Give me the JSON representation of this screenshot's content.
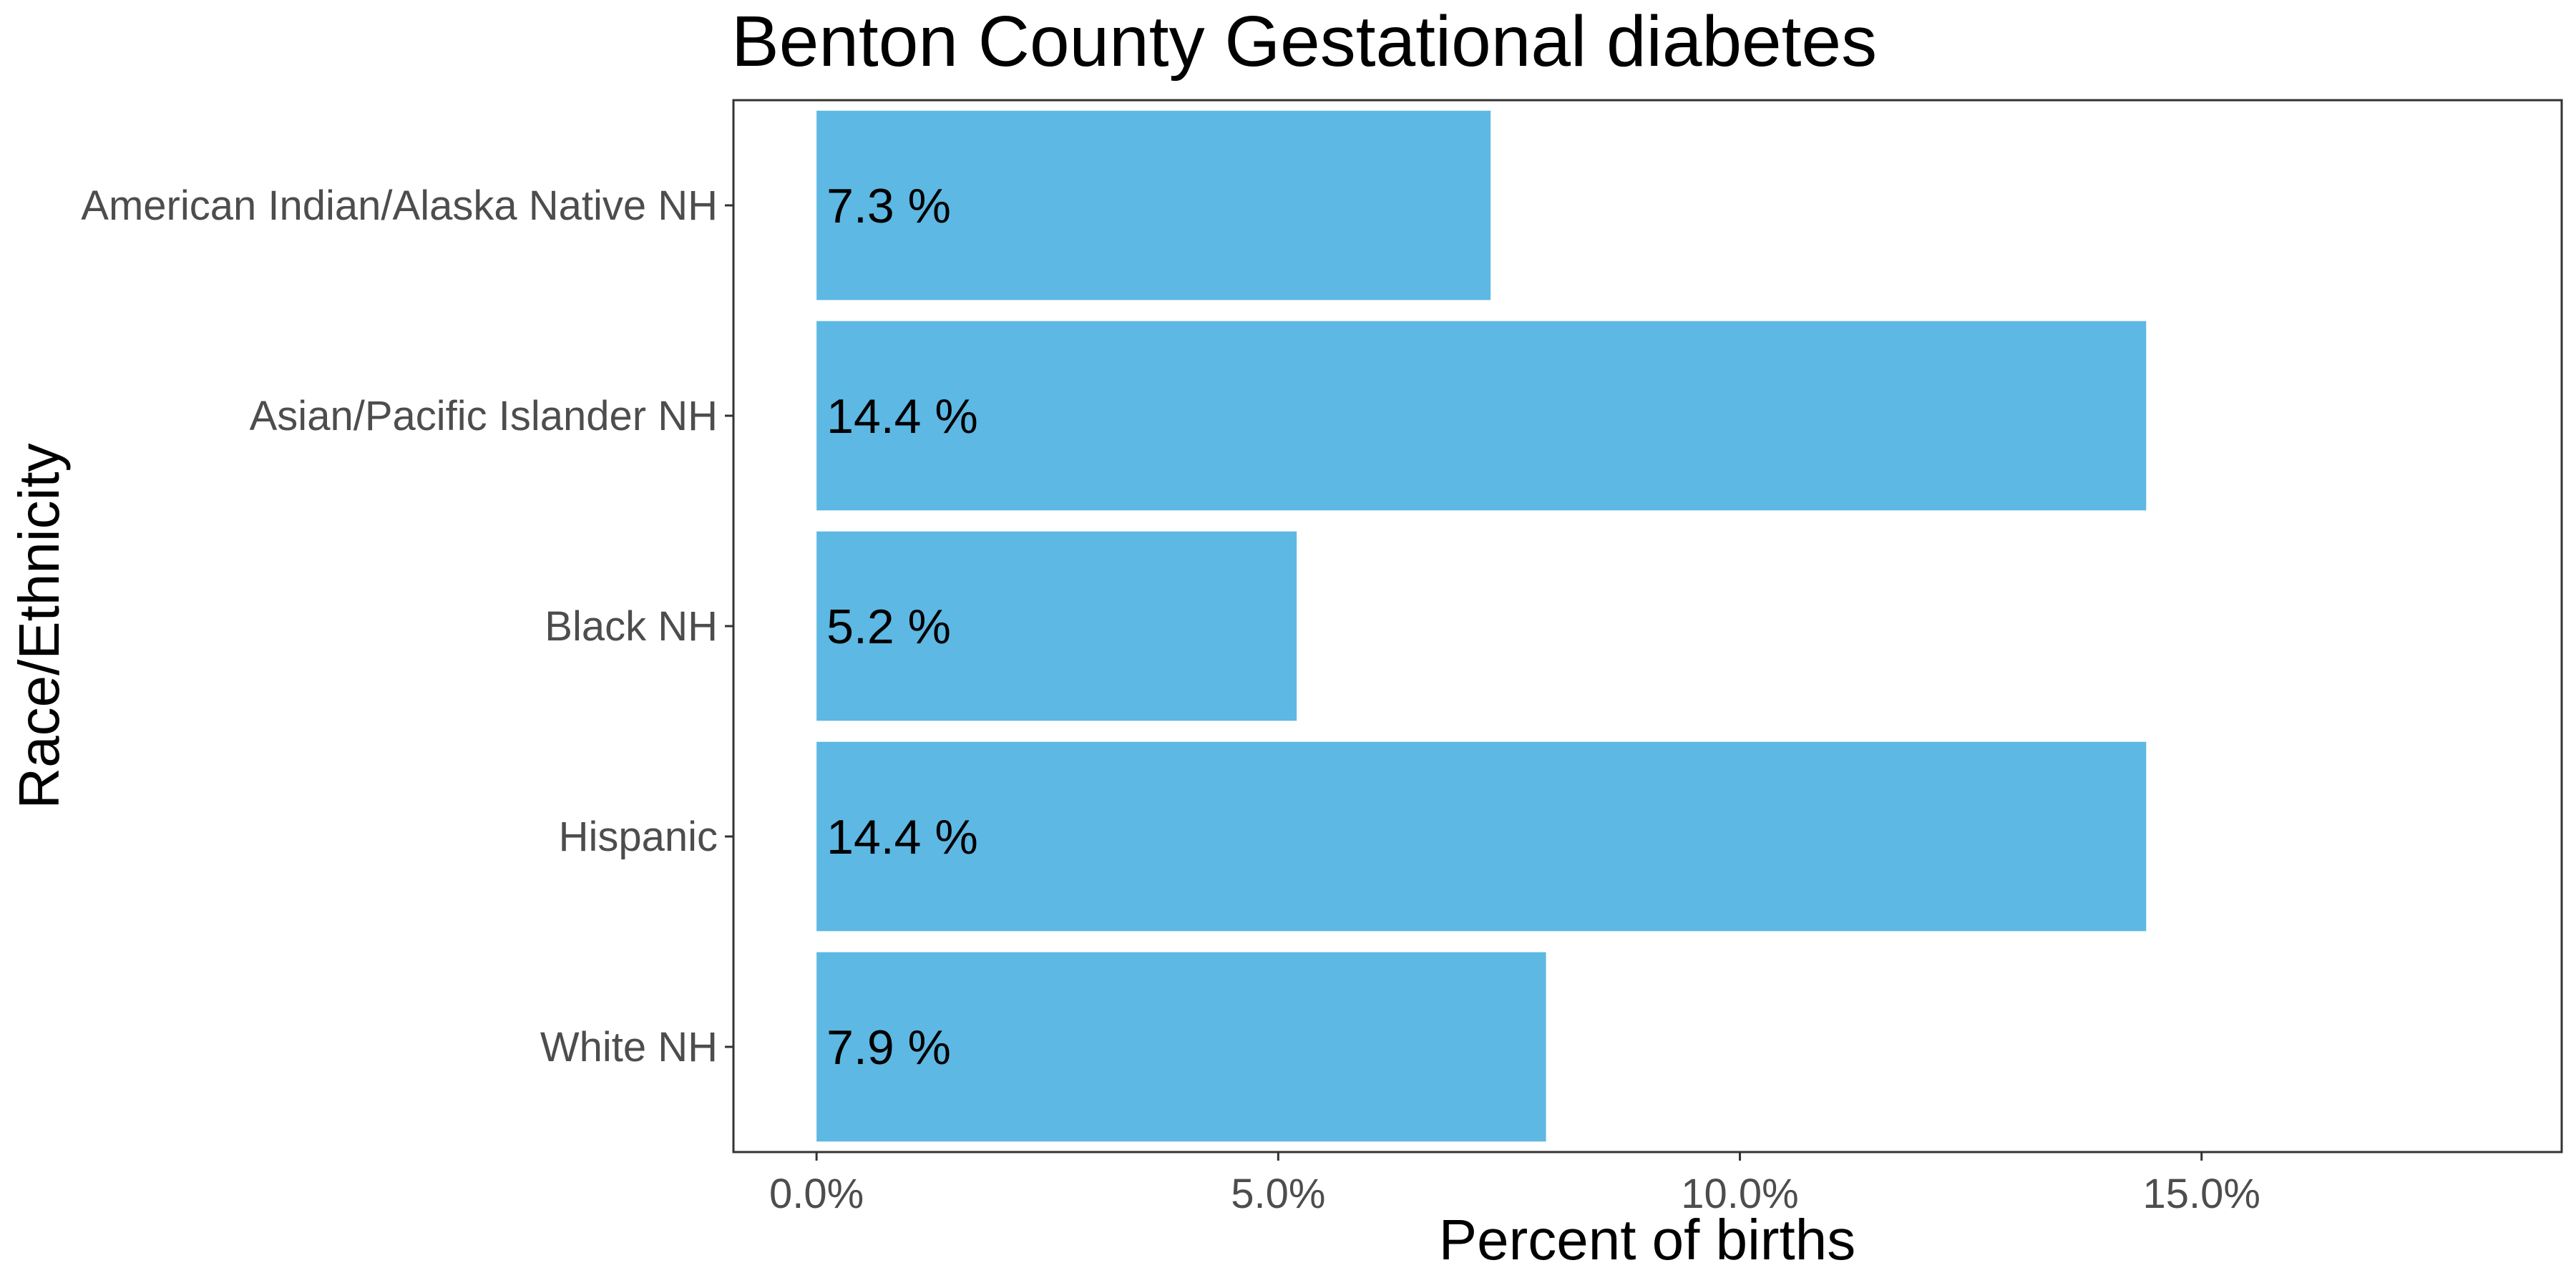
{
  "chart_data": {
    "type": "bar",
    "orientation": "horizontal",
    "title": "Benton County Gestational diabetes",
    "xlabel": "Percent of births",
    "ylabel": "Race/Ethnicity",
    "categories": [
      "American Indian/Alaska Native NH",
      "Asian/Pacific Islander NH",
      "Black NH",
      "Hispanic",
      "White NH"
    ],
    "values": [
      7.3,
      14.4,
      5.2,
      14.4,
      7.9
    ],
    "data_labels": [
      "7.3 %",
      "14.4 %",
      "5.2 %",
      "14.4 %",
      "7.9 %"
    ],
    "x_ticks": [
      {
        "value": 0,
        "label": "0.0%"
      },
      {
        "value": 5,
        "label": "5.0%"
      },
      {
        "value": 10,
        "label": "10.0%"
      },
      {
        "value": 15,
        "label": "15.0%"
      }
    ],
    "xlim": [
      -0.9,
      18.9
    ],
    "bar_color": "#5db8e3",
    "grid": false,
    "legend": "none"
  }
}
